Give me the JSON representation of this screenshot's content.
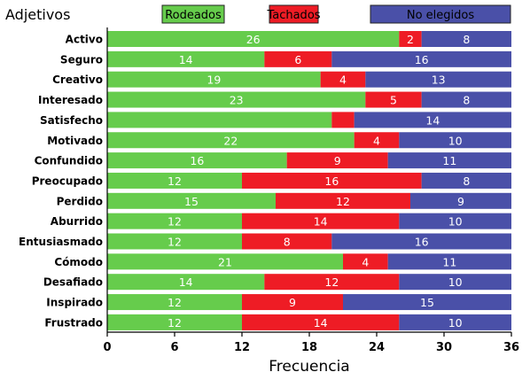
{
  "chart_data": {
    "type": "bar",
    "orientation": "horizontal",
    "stacked": true,
    "title": "Adjetivos",
    "xlabel": "Frecuencia",
    "xlim": [
      0,
      36
    ],
    "xticks": [
      0,
      6,
      12,
      18,
      24,
      30,
      36
    ],
    "grid": false,
    "legend_position": "top",
    "categories": [
      "Activo",
      "Seguro",
      "Creativo",
      "Interesado",
      "Satisfecho",
      "Motivado",
      "Confundido",
      "Preocupado",
      "Perdido",
      "Aburrido",
      "Entusiasmado",
      "Cómodo",
      "Desafiado",
      "Inspirado",
      "Frustrado"
    ],
    "series": [
      {
        "name": "Rodeados",
        "color": "#66cc4c",
        "values": [
          26,
          14,
          19,
          23,
          20,
          22,
          16,
          12,
          15,
          12,
          12,
          21,
          14,
          12,
          12
        ]
      },
      {
        "name": "Tachados",
        "color": "#ee1c25",
        "values": [
          2,
          6,
          4,
          5,
          2,
          4,
          9,
          16,
          12,
          14,
          8,
          4,
          12,
          9,
          14
        ]
      },
      {
        "name": "No elegidos",
        "color": "#4a50a8",
        "values": [
          8,
          16,
          13,
          8,
          14,
          10,
          11,
          8,
          9,
          10,
          16,
          11,
          10,
          15,
          10
        ]
      }
    ],
    "value_labels_shown": [
      [
        true,
        true,
        true,
        true,
        false,
        true,
        true,
        true,
        true,
        true,
        true,
        true,
        true,
        true,
        true
      ],
      [
        true,
        true,
        true,
        true,
        false,
        true,
        true,
        true,
        true,
        true,
        true,
        true,
        true,
        true,
        true
      ],
      [
        true,
        true,
        true,
        true,
        true,
        true,
        true,
        true,
        true,
        true,
        true,
        true,
        true,
        true,
        true
      ]
    ]
  }
}
